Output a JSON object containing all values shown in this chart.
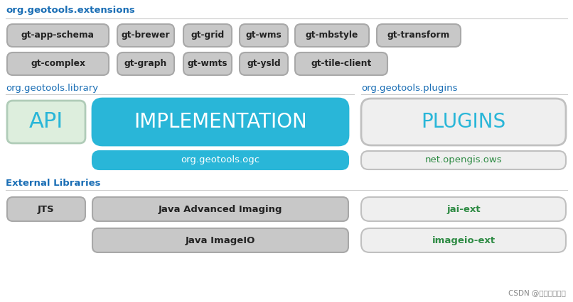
{
  "bg_color": "#ffffff",
  "section_label_color": "#1a6eb5",
  "cyan_color": "#29b6d8",
  "gray_box_color": "#c8c8c8",
  "gray_box_edge": "#a8a8a8",
  "light_green_color": "#ddeedd",
  "light_green_edge": "#b0ccb8",
  "white_box_color": "#efefef",
  "white_box_edge": "#c0c0c0",
  "green_text_color": "#2e8b44",
  "dark_text_color": "#222222",
  "watermark": "CSDN @汤姆猫不是猫",
  "ext_row1": [
    "gt-app-schema",
    "gt-brewer",
    "gt-grid",
    "gt-wms",
    "gt-mbstyle",
    "gt-transform"
  ],
  "ext_row2_left": [
    "gt-complex"
  ],
  "ext_row2_right": [
    "gt-graph",
    "gt-wmts",
    "gt-ysld",
    "gt-tile-client"
  ],
  "section1_label": "org.geotools.extensions",
  "section2a_label": "org.geotools.library",
  "section2b_label": "org.geotools.plugins",
  "section3_label": "External Libraries"
}
